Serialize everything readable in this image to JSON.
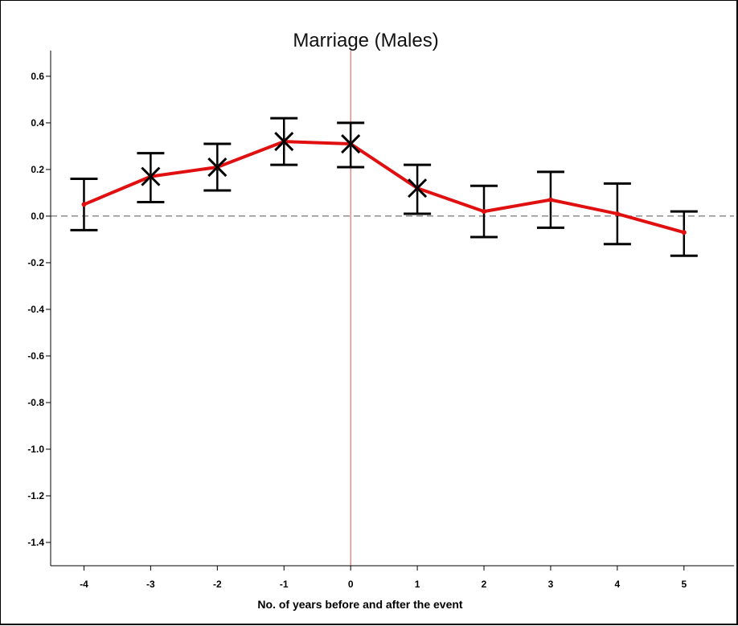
{
  "chart_data": {
    "type": "line",
    "title": "Marriage (Males)",
    "xlabel": "No. of years before and after the event",
    "ylabel": "",
    "x": [
      -4,
      -3,
      -2,
      -1,
      0,
      1,
      2,
      3,
      4,
      5
    ],
    "x_tick_labels": [
      "-4",
      "-3",
      "-2",
      "-1",
      "0",
      "1",
      "2",
      "3",
      "4",
      "5"
    ],
    "xlim": [
      -4.5,
      5.75
    ],
    "y_ticks": [
      0.6,
      0.4,
      0.2,
      0.0,
      -0.2,
      -0.4,
      -0.6,
      -0.8,
      -1.0,
      -1.2,
      -1.4
    ],
    "y_tick_labels": [
      "0.6",
      "0.4",
      "0.2",
      "0.0",
      "-0.2",
      "-0.4",
      "-0.6",
      "-0.8",
      "-1.0",
      "-1.2",
      "-1.4"
    ],
    "ylim": [
      -1.5,
      0.71
    ],
    "series": [
      {
        "values": [
          0.05,
          0.17,
          0.21,
          0.32,
          0.31,
          0.12,
          0.02,
          0.07,
          0.01,
          -0.07
        ],
        "lower": [
          -0.06,
          0.06,
          0.11,
          0.22,
          0.21,
          0.01,
          -0.09,
          -0.05,
          -0.12,
          -0.17
        ],
        "upper": [
          0.16,
          0.27,
          0.31,
          0.42,
          0.4,
          0.22,
          0.13,
          0.19,
          0.14,
          0.02
        ],
        "significant": [
          false,
          true,
          true,
          true,
          true,
          true,
          false,
          false,
          false,
          false
        ]
      }
    ],
    "reference_lines": [
      {
        "axis": "y",
        "value": 0,
        "style": "dashed"
      },
      {
        "axis": "x",
        "value": 0,
        "style": "solid"
      }
    ],
    "grid": false,
    "legend": "none",
    "colors": {
      "line": "#e01010",
      "error_bars": "#000000",
      "event_line": "#e05050",
      "zero_line": "#555555",
      "axes": "#000000"
    }
  }
}
